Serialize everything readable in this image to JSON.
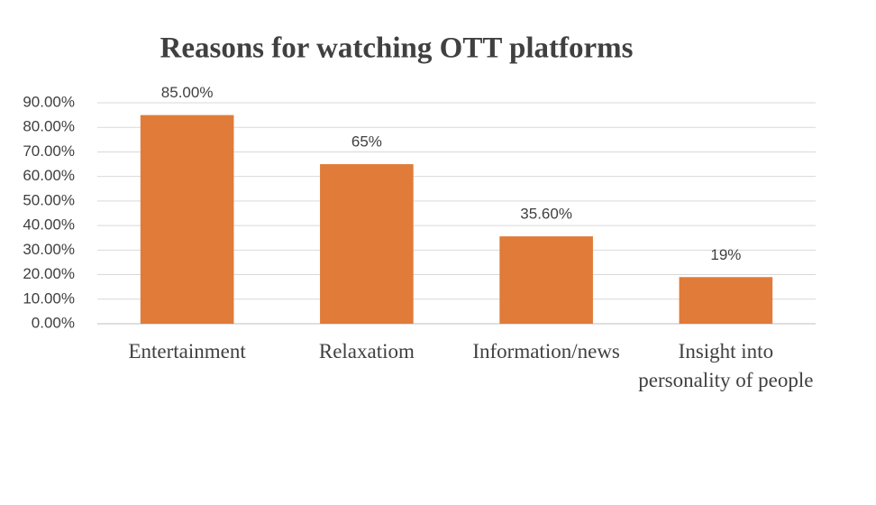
{
  "chart_data": {
    "type": "bar",
    "title": "Reasons for watching OTT platforms",
    "categories": [
      "Entertainment",
      "Relaxatiom",
      "Information/news",
      "Insight into personality of people"
    ],
    "values": [
      85,
      65,
      35.6,
      19
    ],
    "value_labels": [
      "85.00%",
      "65%",
      "35.60%",
      "19%"
    ],
    "color": "#e07b39",
    "ylim": [
      0,
      90
    ],
    "yticks": [
      {
        "value": 0,
        "label": "0.00%"
      },
      {
        "value": 10,
        "label": "10.00%"
      },
      {
        "value": 20,
        "label": "20.00%"
      },
      {
        "value": 30,
        "label": "30.00%"
      },
      {
        "value": 40,
        "label": "40.00%"
      },
      {
        "value": 50,
        "label": "50.00%"
      },
      {
        "value": 60,
        "label": "60.00%"
      },
      {
        "value": 70,
        "label": "70.00%"
      },
      {
        "value": 80,
        "label": "80.00%"
      },
      {
        "value": 90,
        "label": "90.00%"
      }
    ],
    "grid": true
  }
}
